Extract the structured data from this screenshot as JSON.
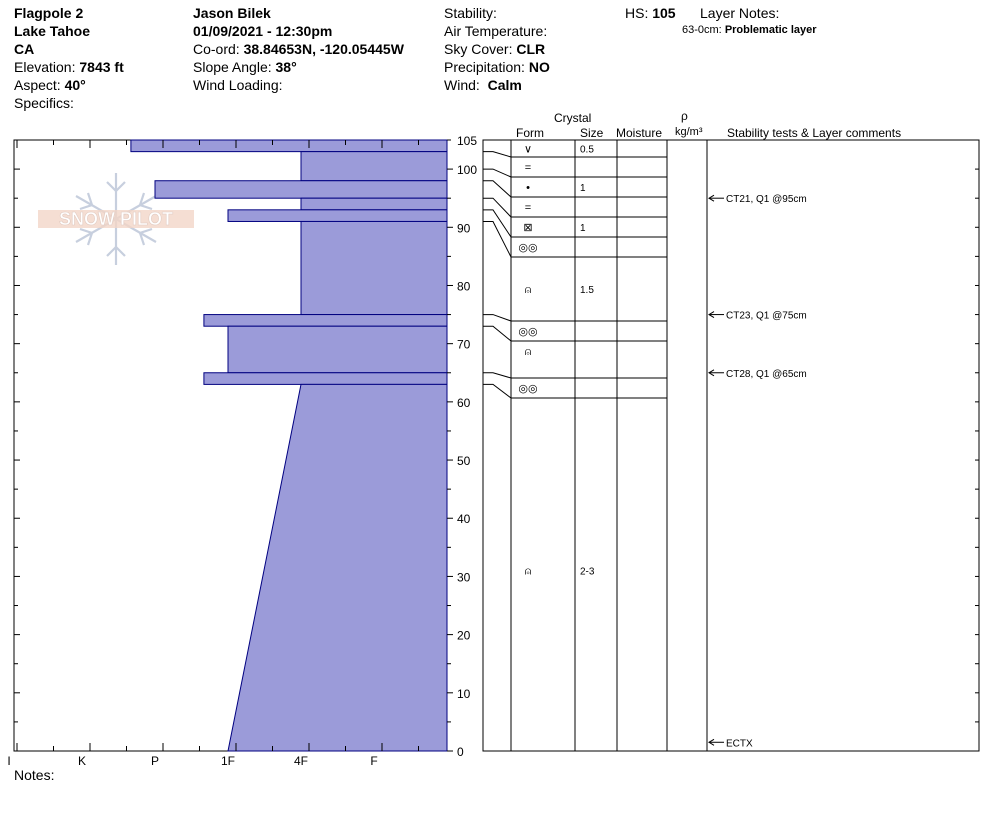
{
  "header": {
    "location": "Flagpole 2",
    "range": "Lake Tahoe",
    "state": "CA",
    "elevation_label": "Elevation:",
    "elevation_value": "7843 ft",
    "aspect_label": "Aspect:",
    "aspect_value": "40°",
    "specifics_label": "Specifics:",
    "observer": "Jason Bilek",
    "datetime": "01/09/2021 - 12:30pm",
    "coord_label": "Co-ord:",
    "coord_value": "38.84653N, -120.05445W",
    "slope_label": "Slope Angle:",
    "slope_value": "38°",
    "wind_loading_label": "Wind Loading:",
    "stability_label": "Stability:",
    "air_temp_label": "Air Temperature:",
    "sky_label": "Sky Cover:",
    "sky_value": "CLR",
    "precip_label": "Precipitation:",
    "precip_value": "NO",
    "wind_label": "Wind:",
    "wind_value": "Calm",
    "hs_label": "HS:",
    "hs_value": "105",
    "layer_notes_label": "Layer Notes:",
    "layer_note_range": "63-0cm:",
    "layer_note_text": "Problematic layer"
  },
  "logo_text": "SNOW PILOT",
  "notes_label": "Notes:",
  "columns": {
    "crystal": "Crystal",
    "form": "Form",
    "size": "Size",
    "moisture": "Moisture",
    "rho": "ρ",
    "density": "kg/m³",
    "comments": "Stability tests & Layer comments"
  },
  "chart_data": {
    "type": "area",
    "title": "",
    "xlabel": "",
    "ylabel": "",
    "x_hardness_ticks": [
      "I",
      "K",
      "P",
      "1F",
      "4F",
      "F"
    ],
    "ylim": [
      0,
      105
    ],
    "y_ticks": [
      0,
      10,
      20,
      30,
      40,
      50,
      60,
      70,
      80,
      90,
      100,
      105
    ],
    "hardness_scale_note": "hardness index: F=1, 4F=2, 1F=3, P=4, K=5, I=6",
    "hardness_profile": [
      {
        "top": 105,
        "bottom": 103,
        "hardness": "P+"
      },
      {
        "top": 103,
        "bottom": 98,
        "hardness": "4F"
      },
      {
        "top": 98,
        "bottom": 95,
        "hardness": "P"
      },
      {
        "top": 95,
        "bottom": 93,
        "hardness": "4F"
      },
      {
        "top": 93,
        "bottom": 91,
        "hardness": "1F"
      },
      {
        "top": 91,
        "bottom": 75,
        "hardness": "4F"
      },
      {
        "top": 75,
        "bottom": 73,
        "hardness": "1F+"
      },
      {
        "top": 73,
        "bottom": 65,
        "hardness": "1F"
      },
      {
        "top": 65,
        "bottom": 63,
        "hardness": "1F+"
      },
      {
        "top": 63,
        "bottom": 0,
        "hardness_top": "4F",
        "hardness_bottom": "1F"
      }
    ],
    "layers": [
      {
        "top": 105,
        "bottom": 103,
        "form": "∨",
        "size": "0.5"
      },
      {
        "top": 103,
        "bottom": 100,
        "form": "=",
        "size": ""
      },
      {
        "top": 100,
        "bottom": 98,
        "form": "•",
        "size": "1"
      },
      {
        "top": 98,
        "bottom": 95,
        "form": "=",
        "size": ""
      },
      {
        "top": 95,
        "bottom": 93,
        "form": "⊠",
        "size": "1"
      },
      {
        "top": 93,
        "bottom": 91,
        "form": "◎◎",
        "size": ""
      },
      {
        "top": 91,
        "bottom": 75,
        "form": "⍝",
        "size": "1.5"
      },
      {
        "top": 75,
        "bottom": 73,
        "form": "◎◎",
        "size": ""
      },
      {
        "top": 73,
        "bottom": 65,
        "form": "⍝",
        "size": ""
      },
      {
        "top": 65,
        "bottom": 63,
        "form": "◎◎",
        "size": ""
      },
      {
        "top": 63,
        "bottom": 0,
        "form": "⍝",
        "size": "2-3"
      }
    ],
    "stability_tests": [
      {
        "depth": 95,
        "label": "CT21, Q1 @95cm"
      },
      {
        "depth": 75,
        "label": "CT23, Q1 @75cm"
      },
      {
        "depth": 65,
        "label": "CT28, Q1 @65cm"
      },
      {
        "depth": 1.5,
        "label": "ECTX"
      }
    ],
    "colors": {
      "fill": "#9b9bd9",
      "stroke": "#000080"
    }
  }
}
